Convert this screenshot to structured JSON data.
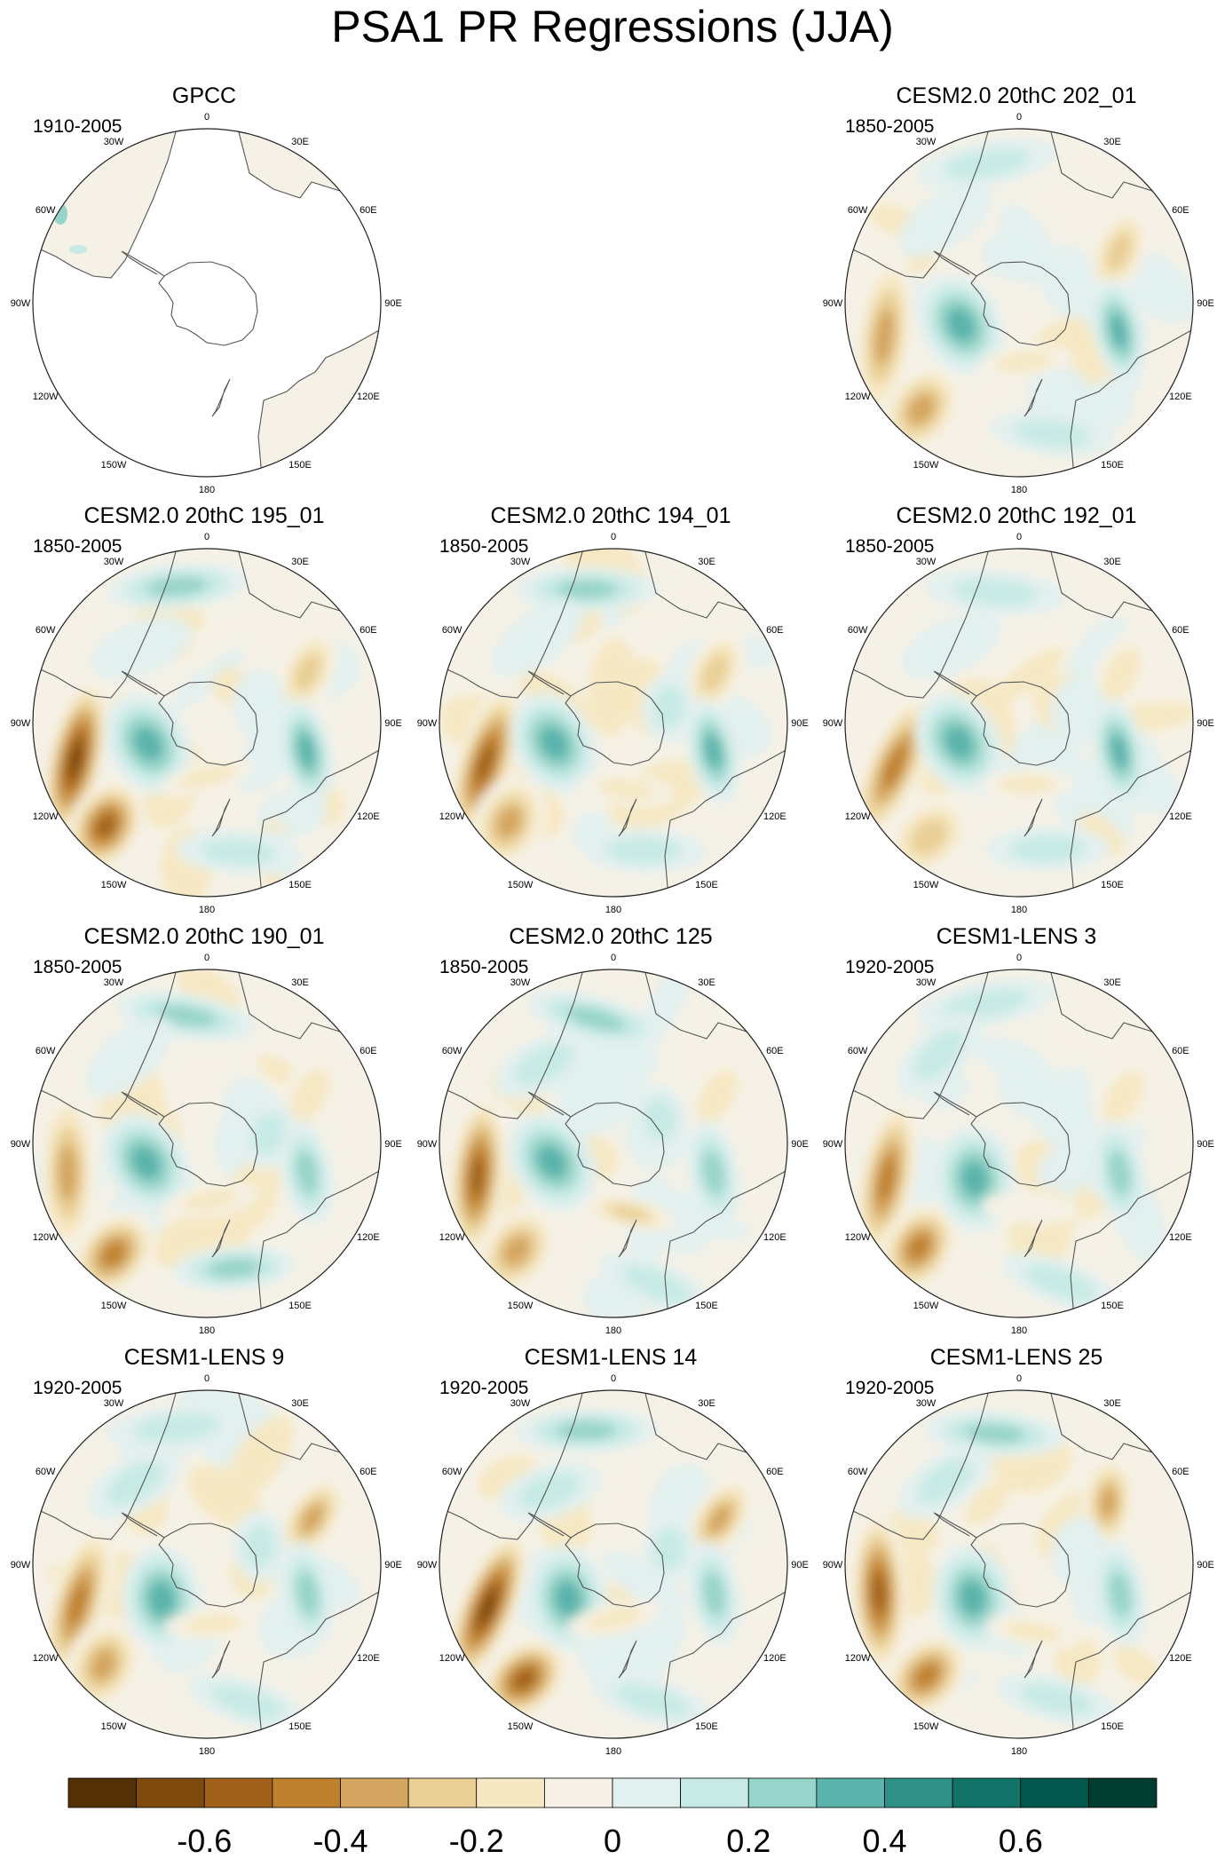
{
  "title": "PSA1 PR Regressions (JJA)",
  "longitude_labels": [
    "0",
    "30E",
    "60E",
    "90E",
    "120E",
    "150E",
    "180",
    "150W",
    "120W",
    "90W",
    "60W",
    "30W"
  ],
  "panels": [
    {
      "title": "GPCC",
      "period": "1910-2005",
      "row": 0,
      "col": 0,
      "type": "obs"
    },
    {
      "title": "CESM2.0 20thC 202_01",
      "period": "1850-2005",
      "row": 0,
      "col": 2,
      "type": "model"
    },
    {
      "title": "CESM2.0 20thC 195_01",
      "period": "1850-2005",
      "row": 1,
      "col": 0,
      "type": "model"
    },
    {
      "title": "CESM2.0 20thC 194_01",
      "period": "1850-2005",
      "row": 1,
      "col": 1,
      "type": "model"
    },
    {
      "title": "CESM2.0 20thC 192_01",
      "period": "1850-2005",
      "row": 1,
      "col": 2,
      "type": "model"
    },
    {
      "title": "CESM2.0 20thC 190_01",
      "period": "1850-2005",
      "row": 2,
      "col": 0,
      "type": "model"
    },
    {
      "title": "CESM2.0 20thC 125",
      "period": "1850-2005",
      "row": 2,
      "col": 1,
      "type": "model"
    },
    {
      "title": "CESM1-LENS 3",
      "period": "1920-2005",
      "row": 2,
      "col": 2,
      "type": "model"
    },
    {
      "title": "CESM1-LENS 9",
      "period": "1920-2005",
      "row": 3,
      "col": 0,
      "type": "model"
    },
    {
      "title": "CESM1-LENS 14",
      "period": "1920-2005",
      "row": 3,
      "col": 1,
      "type": "model"
    },
    {
      "title": "CESM1-LENS 25",
      "period": "1920-2005",
      "row": 3,
      "col": 2,
      "type": "model"
    }
  ],
  "colorbar": {
    "colors": [
      "#543005",
      "#7f4a0e",
      "#a0621a",
      "#bf812d",
      "#d4a661",
      "#e9cf96",
      "#f6e8c3",
      "#f5f1e6",
      "#e2f0ef",
      "#c7eae5",
      "#97d4c9",
      "#5ab4ab",
      "#2f9088",
      "#137268",
      "#01574c",
      "#003c30"
    ],
    "tick_labels": [
      "-0.6",
      "-0.4",
      "-0.2",
      "0",
      "0.2",
      "0.4",
      "0.6"
    ],
    "tick_values": [
      -0.6,
      -0.4,
      -0.2,
      0,
      0.2,
      0.4,
      0.6
    ],
    "range": [
      -0.8,
      0.8
    ]
  }
}
